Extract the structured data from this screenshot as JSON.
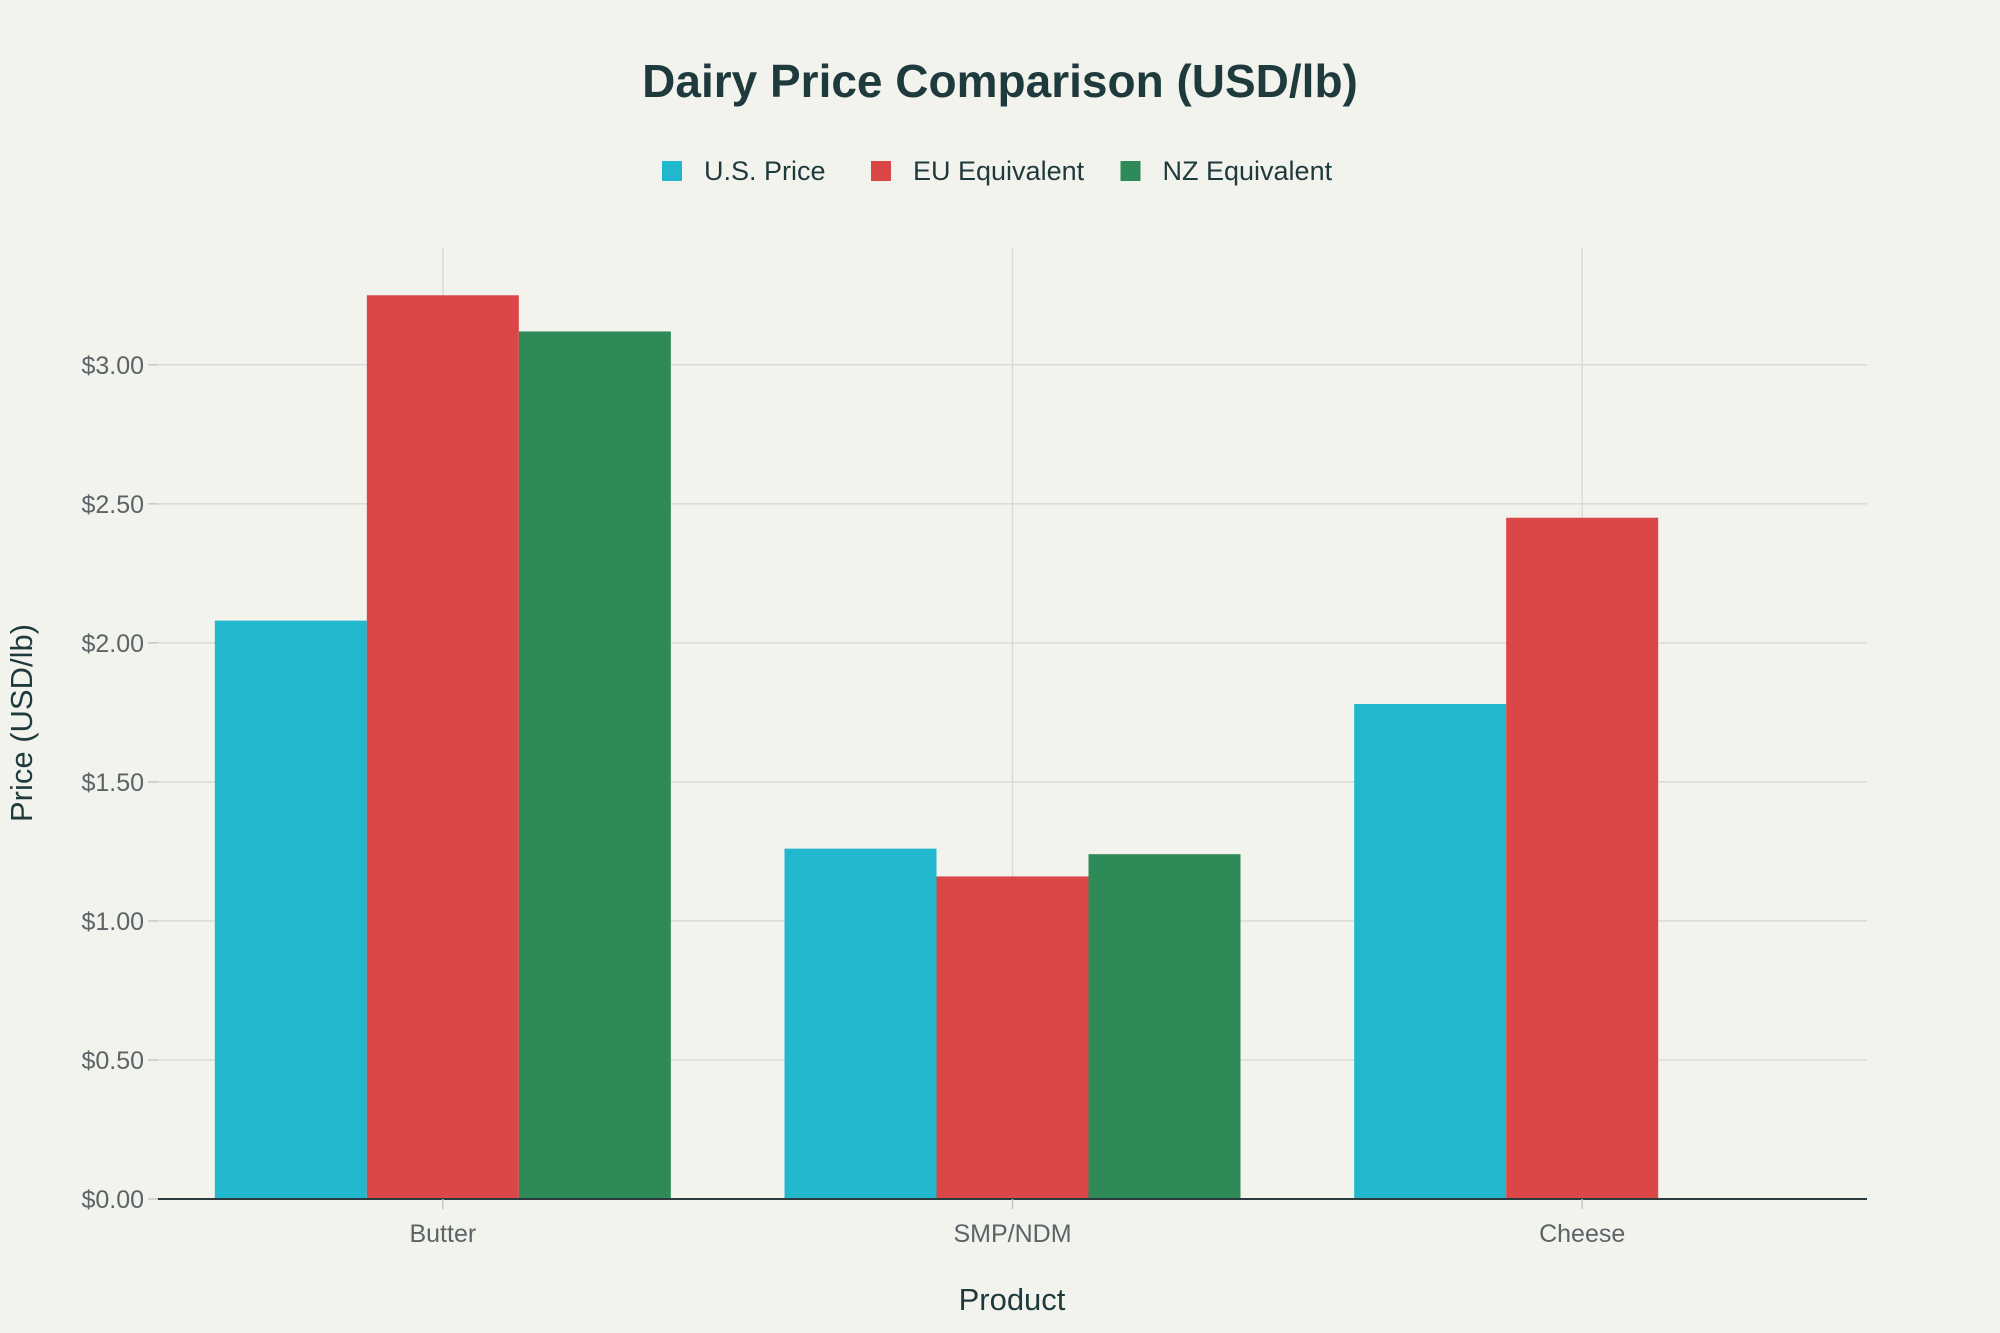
{
  "chart_data": {
    "type": "bar",
    "title": "Dairy Price Comparison (USD/lb)",
    "xlabel": "Product",
    "ylabel": "Price (USD/lb)",
    "categories": [
      "Butter",
      "SMP/NDM",
      "Cheese"
    ],
    "series": [
      {
        "name": "U.S. Price",
        "color": "#21b8cd",
        "values": [
          2.08,
          1.26,
          1.78
        ]
      },
      {
        "name": "EU Equivalent",
        "color": "#db4646",
        "values": [
          3.25,
          1.16,
          2.45
        ]
      },
      {
        "name": "NZ Equivalent",
        "color": "#2e8a56",
        "values": [
          3.12,
          1.24,
          null
        ]
      }
    ],
    "ylim": [
      0,
      3.42
    ],
    "yticks": [
      0,
      0.5,
      1.0,
      1.5,
      2.0,
      2.5,
      3.0
    ],
    "ytick_labels": [
      "$0.00",
      "$0.50",
      "$1.00",
      "$1.50",
      "$2.00",
      "$2.50",
      "$3.00"
    ],
    "grid": true,
    "legend_position": "top-center"
  }
}
